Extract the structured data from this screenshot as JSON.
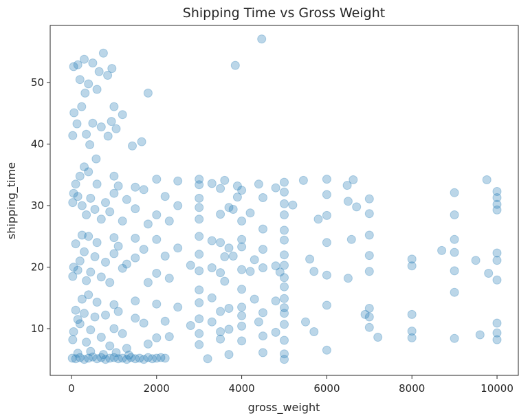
{
  "chart_data": {
    "type": "scatter",
    "title": "Shipping Time vs Gross Weight",
    "xlabel": "gross_weight",
    "ylabel": "shipping_time",
    "xlim": [
      -500,
      10500
    ],
    "ylim": [
      2.4,
      59.3
    ],
    "x_ticks": [
      0,
      2000,
      4000,
      6000,
      8000,
      10000
    ],
    "x_tick_labels": [
      "0",
      "2000",
      "4000",
      "6000",
      "8000",
      "10000"
    ],
    "y_ticks": [
      10,
      20,
      30,
      40,
      50
    ],
    "y_tick_labels": [
      "10",
      "20",
      "30",
      "40",
      "50"
    ],
    "grid": false,
    "legend": "none",
    "point_color": "#1f77b4",
    "point_alpha": 0.3,
    "series": [
      {
        "values": [
          [
            4470,
            57.1
          ],
          [
            3850,
            52.8
          ],
          [
            1800,
            48.3
          ],
          [
            750,
            54.8
          ],
          [
            300,
            53.8
          ],
          [
            150,
            52.9
          ],
          [
            50,
            52.6
          ],
          [
            500,
            53.2
          ],
          [
            950,
            52.3
          ],
          [
            650,
            51.8
          ],
          [
            850,
            51.2
          ],
          [
            200,
            50.5
          ],
          [
            400,
            49.8
          ],
          [
            600,
            48.9
          ],
          [
            320,
            48.3
          ],
          [
            1000,
            46.1
          ],
          [
            240,
            46.1
          ],
          [
            60,
            45.1
          ],
          [
            1200,
            44.8
          ],
          [
            940,
            43.7
          ],
          [
            130,
            43.3
          ],
          [
            500,
            43.4
          ],
          [
            700,
            42.8
          ],
          [
            1050,
            42.5
          ],
          [
            350,
            41.6
          ],
          [
            30,
            41.4
          ],
          [
            860,
            41.3
          ],
          [
            1430,
            39.7
          ],
          [
            1650,
            40.4
          ],
          [
            430,
            39.9
          ],
          [
            580,
            37.6
          ],
          [
            4400,
            33.5
          ],
          [
            6000,
            34.3
          ],
          [
            6480,
            33.3
          ],
          [
            6620,
            34.2
          ],
          [
            5450,
            34.1
          ],
          [
            9760,
            34.2
          ],
          [
            10000,
            32.3
          ],
          [
            10000,
            31.3
          ],
          [
            10000,
            30.2
          ],
          [
            10000,
            29.3
          ],
          [
            9000,
            32.1
          ],
          [
            9000,
            28.5
          ],
          [
            7000,
            31.1
          ],
          [
            7000,
            28.7
          ],
          [
            7000,
            25.2
          ],
          [
            6500,
            30.7
          ],
          [
            6700,
            29.8
          ],
          [
            6000,
            31.8
          ],
          [
            6000,
            28.4
          ],
          [
            5800,
            27.8
          ],
          [
            5200,
            30.1
          ],
          [
            5000,
            33.8
          ],
          [
            5000,
            32.2
          ],
          [
            5000,
            30.3
          ],
          [
            5000,
            28.5
          ],
          [
            4800,
            32.9
          ],
          [
            4200,
            28.8
          ],
          [
            3900,
            33.2
          ],
          [
            3900,
            31.4
          ],
          [
            3800,
            29.4
          ],
          [
            3600,
            34.1
          ],
          [
            3500,
            32.8
          ],
          [
            3000,
            34.3
          ],
          [
            3000,
            31.2
          ],
          [
            3000,
            29.7
          ],
          [
            3000,
            27.8
          ],
          [
            10000,
            22.3
          ],
          [
            10000,
            21.1
          ],
          [
            10000,
            17.9
          ],
          [
            9800,
            19.0
          ],
          [
            9500,
            21.1
          ],
          [
            9000,
            24.5
          ],
          [
            9000,
            22.4
          ],
          [
            9000,
            19.4
          ],
          [
            9000,
            15.9
          ],
          [
            8700,
            22.7
          ],
          [
            8000,
            21.3
          ],
          [
            8000,
            20.2
          ],
          [
            7000,
            21.9
          ],
          [
            7000,
            19.3
          ],
          [
            6580,
            24.5
          ],
          [
            6500,
            18.2
          ],
          [
            6000,
            24.0
          ],
          [
            6000,
            18.7
          ],
          [
            5700,
            19.3
          ],
          [
            5600,
            21.3
          ],
          [
            5000,
            24.4
          ],
          [
            5000,
            22.0
          ],
          [
            5000,
            20.3
          ],
          [
            5000,
            18.3
          ],
          [
            4900,
            19.2
          ],
          [
            4500,
            22.9
          ],
          [
            4300,
            21.2
          ],
          [
            4000,
            24.5
          ],
          [
            4000,
            19.6
          ],
          [
            3800,
            21.8
          ],
          [
            10000,
            10.9
          ],
          [
            10000,
            9.3
          ],
          [
            10000,
            8.2
          ],
          [
            9600,
            9.0
          ],
          [
            9000,
            8.4
          ],
          [
            8000,
            12.3
          ],
          [
            8000,
            9.6
          ],
          [
            8000,
            8.5
          ],
          [
            7200,
            8.6
          ],
          [
            7000,
            13.3
          ],
          [
            7000,
            11.9
          ],
          [
            7000,
            10.2
          ],
          [
            6900,
            12.3
          ],
          [
            6000,
            13.8
          ],
          [
            6000,
            6.5
          ],
          [
            5700,
            9.5
          ],
          [
            5500,
            11.1
          ],
          [
            5000,
            14.9
          ],
          [
            5000,
            12.5
          ],
          [
            5000,
            5.9
          ],
          [
            5000,
            5.0
          ],
          [
            4500,
            6.1
          ],
          [
            4400,
            11.1
          ],
          [
            4000,
            13.5
          ],
          [
            4000,
            10.4
          ],
          [
            3700,
            5.8
          ],
          [
            3500,
            8.3
          ],
          [
            3200,
            5.1
          ],
          [
            2000,
            34.3
          ],
          [
            2500,
            34.0
          ],
          [
            2200,
            31.5
          ],
          [
            2500,
            30.0
          ],
          [
            2000,
            28.5
          ],
          [
            1500,
            33.0
          ],
          [
            1500,
            29.5
          ],
          [
            1000,
            34.8
          ],
          [
            1000,
            32.0
          ],
          [
            800,
            30.5
          ],
          [
            600,
            33.5
          ],
          [
            400,
            35.5
          ],
          [
            300,
            36.3
          ],
          [
            200,
            34.8
          ],
          [
            100,
            33.5
          ],
          [
            50,
            32.0
          ],
          [
            30,
            30.5
          ],
          [
            150,
            31.5
          ],
          [
            250,
            30.0
          ],
          [
            350,
            28.5
          ],
          [
            450,
            31.2
          ],
          [
            550,
            29.4
          ],
          [
            700,
            27.8
          ],
          [
            900,
            29.0
          ],
          [
            1200,
            27.5
          ],
          [
            1800,
            27.0
          ],
          [
            2300,
            27.5
          ],
          [
            1100,
            33.2
          ],
          [
            1300,
            31.0
          ],
          [
            1700,
            32.6
          ],
          [
            2000,
            24.5
          ],
          [
            2500,
            23.1
          ],
          [
            2200,
            21.8
          ],
          [
            2800,
            20.3
          ],
          [
            2000,
            19.0
          ],
          [
            1500,
            24.7
          ],
          [
            1500,
            21.5
          ],
          [
            1000,
            24.8
          ],
          [
            1000,
            22.2
          ],
          [
            800,
            20.8
          ],
          [
            600,
            24.0
          ],
          [
            400,
            25.0
          ],
          [
            300,
            22.5
          ],
          [
            200,
            21.0
          ],
          [
            100,
            23.8
          ],
          [
            50,
            20.0
          ],
          [
            30,
            18.5
          ],
          [
            150,
            19.5
          ],
          [
            250,
            25.2
          ],
          [
            350,
            17.8
          ],
          [
            450,
            19.2
          ],
          [
            550,
            21.7
          ],
          [
            700,
            18.4
          ],
          [
            900,
            17.5
          ],
          [
            1200,
            19.8
          ],
          [
            1800,
            17.5
          ],
          [
            2300,
            18.2
          ],
          [
            1100,
            23.4
          ],
          [
            1300,
            20.5
          ],
          [
            1700,
            22.9
          ],
          [
            2000,
            14.0
          ],
          [
            2500,
            13.5
          ],
          [
            2200,
            11.2
          ],
          [
            2800,
            10.5
          ],
          [
            2000,
            8.5
          ],
          [
            1500,
            14.5
          ],
          [
            1500,
            11.7
          ],
          [
            1000,
            13.9
          ],
          [
            1000,
            10.0
          ],
          [
            800,
            12.2
          ],
          [
            600,
            14.3
          ],
          [
            400,
            15.5
          ],
          [
            300,
            12.5
          ],
          [
            200,
            10.8
          ],
          [
            100,
            13.0
          ],
          [
            50,
            9.5
          ],
          [
            30,
            8.2
          ],
          [
            150,
            11.5
          ],
          [
            250,
            14.8
          ],
          [
            350,
            7.8
          ],
          [
            450,
            9.8
          ],
          [
            550,
            11.9
          ],
          [
            700,
            8.6
          ],
          [
            900,
            7.2
          ],
          [
            1200,
            9.2
          ],
          [
            1800,
            7.5
          ],
          [
            2300,
            8.7
          ],
          [
            1100,
            12.8
          ],
          [
            1300,
            6.8
          ],
          [
            1700,
            10.9
          ],
          [
            20,
            5.2
          ],
          [
            100,
            5.1
          ],
          [
            200,
            5.3
          ],
          [
            300,
            5.0
          ],
          [
            400,
            5.2
          ],
          [
            500,
            5.4
          ],
          [
            600,
            5.1
          ],
          [
            700,
            5.3
          ],
          [
            800,
            5.0
          ],
          [
            900,
            5.2
          ],
          [
            1000,
            5.3
          ],
          [
            1100,
            5.1
          ],
          [
            1200,
            5.2
          ],
          [
            1300,
            5.0
          ],
          [
            1400,
            5.3
          ],
          [
            1500,
            5.1
          ],
          [
            1600,
            5.2
          ],
          [
            1700,
            5.0
          ],
          [
            1800,
            5.3
          ],
          [
            1900,
            5.1
          ],
          [
            2000,
            5.2
          ],
          [
            2100,
            5.3
          ],
          [
            2200,
            5.2
          ],
          [
            150,
            6.0
          ],
          [
            450,
            6.3
          ],
          [
            750,
            5.8
          ],
          [
            1050,
            6.1
          ],
          [
            1350,
            5.7
          ],
          [
            3000,
            33.4
          ],
          [
            3000,
            25.0
          ],
          [
            3000,
            22.1
          ],
          [
            3000,
            19.4
          ],
          [
            3000,
            16.3
          ],
          [
            3000,
            14.2
          ],
          [
            3000,
            11.6
          ],
          [
            3000,
            9.2
          ],
          [
            3000,
            7.4
          ],
          [
            3300,
            33.6
          ],
          [
            3300,
            24.3
          ],
          [
            3300,
            19.9
          ],
          [
            3300,
            15.0
          ],
          [
            3300,
            11.1
          ],
          [
            3500,
            28.6
          ],
          [
            3500,
            24.0
          ],
          [
            3500,
            19.1
          ],
          [
            3500,
            12.8
          ],
          [
            3500,
            9.5
          ],
          [
            3600,
            21.7
          ],
          [
            3600,
            17.7
          ],
          [
            3700,
            29.7
          ],
          [
            3700,
            23.1
          ],
          [
            3700,
            13.3
          ],
          [
            3700,
            9.9
          ],
          [
            4000,
            32.5
          ],
          [
            4000,
            27.5
          ],
          [
            4000,
            23.3
          ],
          [
            4000,
            16.4
          ],
          [
            4000,
            12.1
          ],
          [
            4000,
            8.0
          ],
          [
            4200,
            19.3
          ],
          [
            4300,
            14.8
          ],
          [
            4500,
            31.3
          ],
          [
            4500,
            26.2
          ],
          [
            4500,
            19.9
          ],
          [
            4500,
            12.6
          ],
          [
            4500,
            8.8
          ],
          [
            4800,
            20.2
          ],
          [
            4800,
            14.5
          ],
          [
            4800,
            9.4
          ],
          [
            5000,
            26.0
          ],
          [
            5000,
            16.8
          ],
          [
            5000,
            13.4
          ],
          [
            5000,
            10.7
          ],
          [
            5000,
            8.1
          ]
        ]
      }
    ]
  }
}
